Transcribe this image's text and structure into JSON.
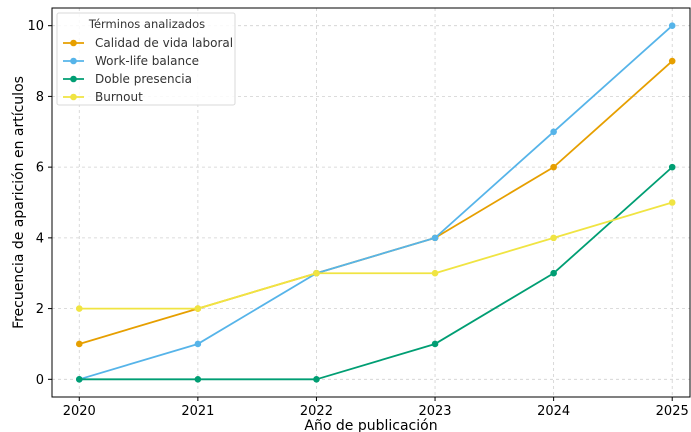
{
  "chart_data": {
    "type": "line",
    "title": "",
    "xlabel": "Año de publicación",
    "ylabel": "Frecuencia de aparición en artículos",
    "x": [
      2020,
      2021,
      2022,
      2023,
      2024,
      2025
    ],
    "xlim": [
      2019.77,
      2025.15
    ],
    "ylim": [
      -0.5,
      10.5
    ],
    "yticks": [
      0,
      2,
      4,
      6,
      8,
      10
    ],
    "grid": true,
    "legend": {
      "title": "Términos analizados",
      "placement": "top-left"
    },
    "series": [
      {
        "name": "Calidad de vida laboral",
        "color": "#E69F00",
        "values": [
          1,
          2,
          3,
          4,
          6,
          9
        ]
      },
      {
        "name": "Work-life balance",
        "color": "#56B4E9",
        "values": [
          0,
          1,
          3,
          4,
          7,
          10
        ]
      },
      {
        "name": "Doble presencia",
        "color": "#009E73",
        "values": [
          0,
          0,
          0,
          1,
          3,
          6
        ]
      },
      {
        "name": "Burnout",
        "color": "#F0E442",
        "values": [
          2,
          2,
          3,
          3,
          4,
          5
        ]
      }
    ]
  }
}
